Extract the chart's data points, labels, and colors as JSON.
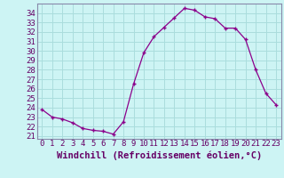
{
  "x": [
    0,
    1,
    2,
    3,
    4,
    5,
    6,
    7,
    8,
    9,
    10,
    11,
    12,
    13,
    14,
    15,
    16,
    17,
    18,
    19,
    20,
    21,
    22,
    23
  ],
  "y": [
    23.8,
    23.0,
    22.8,
    22.4,
    21.8,
    21.6,
    21.5,
    21.2,
    22.5,
    26.5,
    29.8,
    31.5,
    32.5,
    33.5,
    34.5,
    34.3,
    33.6,
    33.4,
    32.4,
    32.4,
    31.2,
    28.0,
    25.5,
    24.3
  ],
  "line_color": "#8B008B",
  "marker": "+",
  "bg_color": "#cdf4f4",
  "grid_color": "#aadddd",
  "xlabel": "Windchill (Refroidissement éolien,°C)",
  "ylabel_ticks": [
    21,
    22,
    23,
    24,
    25,
    26,
    27,
    28,
    29,
    30,
    31,
    32,
    33,
    34
  ],
  "ylim": [
    20.7,
    35.0
  ],
  "xlim": [
    -0.5,
    23.5
  ],
  "tick_fontsize": 6.5,
  "xlabel_fontsize": 7.5
}
